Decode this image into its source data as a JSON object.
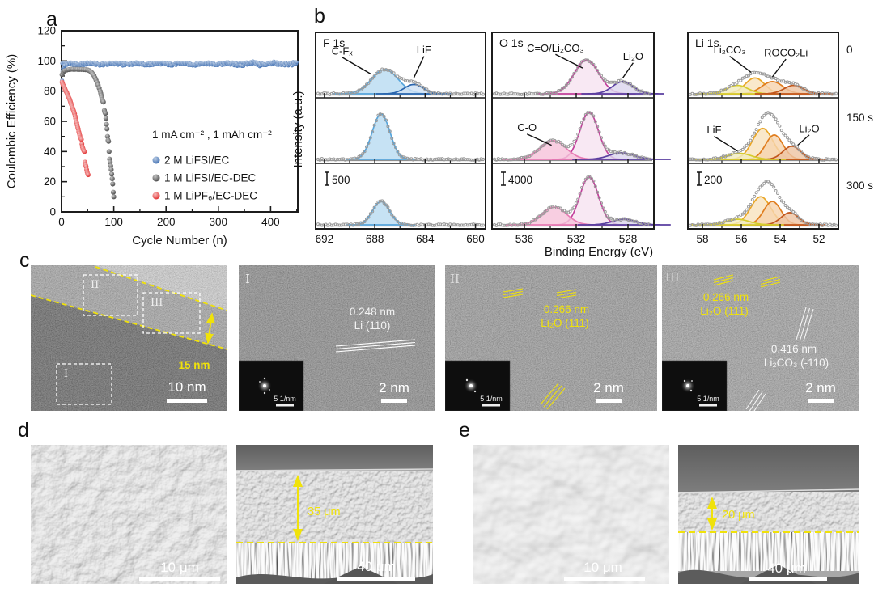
{
  "panel_labels": {
    "a": "a",
    "b": "b",
    "c": "c",
    "d": "d",
    "e": "e"
  },
  "panel_a": {
    "annotation": "1 mA cm⁻² , 1 mAh cm⁻²",
    "legend": [
      {
        "label": "2 M LiFSI/EC",
        "color": "#2e62ab"
      },
      {
        "label": "1 M LiFSI/EC-DEC",
        "color": "#3b3b3b"
      },
      {
        "label": "1 M LiPF₆/EC-DEC",
        "color": "#e01f1f"
      }
    ]
  },
  "chart_data": [
    {
      "type": "scatter",
      "title": "Coulombic efficiency vs cycle number",
      "xlabel": "Cycle Number (n)",
      "ylabel": "Coulombic Efficiency (%)",
      "xlim": [
        0,
        452
      ],
      "ylim": [
        0,
        120
      ],
      "xticks": [
        0,
        100,
        200,
        300,
        400
      ],
      "yticks": [
        0,
        20,
        40,
        60,
        80,
        100,
        120
      ],
      "annotation": "1 mA cm⁻² , 1 mAh cm⁻²",
      "series": [
        {
          "name": "2 M LiFSI/EC",
          "color": "#2e62ab",
          "marker_r": 2.3,
          "summary": "stable ≈98% from cycle 1 to 450",
          "band": {
            "x0": 1,
            "x1": 450,
            "y": 98,
            "noise": 1.8
          },
          "points": [
            [
              1,
              87
            ],
            [
              2,
              93
            ],
            [
              3,
              95
            ],
            [
              4,
              96
            ],
            [
              6,
              97
            ],
            [
              10,
              97.5
            ]
          ]
        },
        {
          "name": "1 M LiFSI/EC-DEC",
          "color": "#3b3b3b",
          "marker_r": 3.1,
          "points": [
            [
              1,
              91
            ],
            [
              3,
              92.5
            ],
            [
              6,
              93.5
            ],
            [
              10,
              94
            ],
            [
              14,
              94.3
            ],
            [
              18,
              94.5
            ],
            [
              22,
              94.5
            ],
            [
              26,
              94.5
            ],
            [
              30,
              94.5
            ],
            [
              34,
              94.4
            ],
            [
              38,
              94.4
            ],
            [
              42,
              94.3
            ],
            [
              46,
              94.2
            ],
            [
              50,
              94
            ],
            [
              53,
              93.6
            ],
            [
              56,
              92.9
            ],
            [
              58,
              92.2
            ],
            [
              60,
              91.3
            ],
            [
              62,
              90.3
            ],
            [
              64,
              88.8
            ],
            [
              66,
              87.3
            ],
            [
              68,
              85.7
            ],
            [
              70,
              84
            ],
            [
              72,
              82
            ],
            [
              74,
              80
            ],
            [
              75,
              78.6
            ],
            [
              76,
              77.2
            ],
            [
              77,
              75.8
            ],
            [
              78,
              74.3
            ],
            [
              79,
              73.2
            ],
            [
              80,
              72.8
            ],
            [
              82,
              67.2
            ],
            [
              83,
              66
            ],
            [
              84,
              65.3
            ],
            [
              85,
              62
            ],
            [
              86,
              58
            ],
            [
              87,
              55
            ],
            [
              88,
              50
            ],
            [
              89,
              47.5
            ],
            [
              90,
              46.8
            ],
            [
              91,
              40
            ],
            [
              92,
              35
            ],
            [
              93,
              33
            ],
            [
              94,
              30.5
            ],
            [
              95,
              28
            ],
            [
              96,
              25
            ],
            [
              97,
              22
            ],
            [
              98,
              18.5
            ],
            [
              99,
              13
            ],
            [
              100,
              10
            ]
          ]
        },
        {
          "name": "1 M LiPF₆/EC-DEC",
          "color": "#e01f1f",
          "marker_r": 3.0,
          "points": [
            [
              1,
              86
            ],
            [
              2,
              85
            ],
            [
              3,
              84
            ],
            [
              4,
              83.4
            ],
            [
              5,
              82.8
            ],
            [
              6,
              82
            ],
            [
              7,
              81
            ],
            [
              8,
              80.2
            ],
            [
              9,
              79.6
            ],
            [
              10,
              79
            ],
            [
              11,
              78
            ],
            [
              12,
              77
            ],
            [
              13,
              76.4
            ],
            [
              14,
              75.6
            ],
            [
              15,
              75
            ],
            [
              16,
              74
            ],
            [
              17,
              73
            ],
            [
              18,
              72
            ],
            [
              19,
              71
            ],
            [
              20,
              70
            ],
            [
              21,
              69
            ],
            [
              22,
              68
            ],
            [
              23,
              67
            ],
            [
              24,
              66
            ],
            [
              25,
              65
            ],
            [
              26,
              63.5
            ],
            [
              27,
              62
            ],
            [
              28,
              60.5
            ],
            [
              29,
              59
            ],
            [
              30,
              57.5
            ],
            [
              31,
              56
            ],
            [
              32,
              55
            ],
            [
              33,
              53.2
            ],
            [
              34,
              52
            ],
            [
              35,
              50.6
            ],
            [
              36,
              49.2
            ],
            [
              37,
              48.6
            ],
            [
              38,
              48
            ],
            [
              39,
              45
            ],
            [
              40,
              43
            ],
            [
              41,
              42
            ],
            [
              42,
              41
            ],
            [
              43,
              40.4
            ],
            [
              44,
              40
            ],
            [
              45,
              33
            ],
            [
              46,
              31
            ],
            [
              47,
              30
            ],
            [
              48,
              28
            ],
            [
              49,
              26.4
            ],
            [
              50,
              25.2
            ],
            [
              51,
              24.6
            ]
          ]
        }
      ]
    },
    {
      "type": "line",
      "subtype": "xps-depth-profile",
      "xlabel": "Binding Energy (eV)",
      "ylabel": "Intensity (a.u.)",
      "row_labels": [
        "0",
        "150 s",
        "300 s"
      ],
      "columns": [
        {
          "title": "F 1s",
          "scale_bar": "500",
          "xticks": [
            692,
            688,
            684,
            680
          ],
          "xrange": [
            692.7,
            679.2
          ],
          "components": {
            "C-Fx": {
              "stroke": "#56a5dc",
              "fill": "#badcf2"
            },
            "LiF": {
              "stroke": "#2b66ae",
              "fill": "#cfe2f4"
            }
          },
          "rows": [
            {
              "time": "0",
              "peaks": [
                {
                  "id": "C-Fx",
                  "center": 687.2,
                  "sigma": 1.05,
                  "amp": 0.52
                },
                {
                  "id": "LiF",
                  "center": 684.9,
                  "sigma": 0.75,
                  "amp": 0.2
                }
              ],
              "labels": [
                {
                  "text": "C-Fₓ",
                  "x": 690.6,
                  "ry": 0.84,
                  "line_to": [
                    688.3,
                    0.42
                  ]
                },
                {
                  "text": "LiF",
                  "x": 684.1,
                  "ry": 0.86,
                  "line_to": [
                    684.9,
                    0.34
                  ]
                }
              ]
            },
            {
              "time": "150 s",
              "peaks": [
                {
                  "id": "C-Fx",
                  "center": 687.5,
                  "sigma": 0.7,
                  "amp": 0.97
                }
              ],
              "labels": []
            },
            {
              "time": "300 s",
              "peaks": [
                {
                  "id": "C-Fx",
                  "center": 687.5,
                  "sigma": 0.68,
                  "amp": 0.5
                }
              ],
              "labels": [],
              "show_scale": true
            }
          ]
        },
        {
          "title": "O 1s",
          "scale_bar": "4000",
          "xticks": [
            536,
            532,
            528
          ],
          "xrange": [
            538.5,
            526.0
          ],
          "components": {
            "CO3": {
              "stroke": "#c23f9b",
              "fill": "#f6e3f0"
            },
            "C-O": {
              "stroke": "#e87cb4",
              "fill": "#f6c3da"
            },
            "Li2O": {
              "stroke": "#5a3fa0",
              "fill": "#dcd6ee"
            }
          },
          "rows": [
            {
              "time": "0",
              "peaks": [
                {
                  "id": "CO3",
                  "center": 531.2,
                  "sigma": 0.95,
                  "amp": 0.72
                },
                {
                  "id": "Li2O",
                  "center": 528.4,
                  "sigma": 0.8,
                  "amp": 0.26
                }
              ],
              "labels": [
                {
                  "text": "C=O/Li₂CO₃",
                  "x": 533.6,
                  "ry": 0.9,
                  "line_to": [
                    531.5,
                    0.55
                  ]
                },
                {
                  "text": "Li₂O",
                  "x": 527.6,
                  "ry": 0.72,
                  "line_to": [
                    528.4,
                    0.34
                  ]
                }
              ]
            },
            {
              "time": "150 s",
              "peaks": [
                {
                  "id": "C-O",
                  "center": 533.8,
                  "sigma": 1.0,
                  "amp": 0.4
                },
                {
                  "id": "CO3",
                  "center": 531.0,
                  "sigma": 0.72,
                  "amp": 1.0
                },
                {
                  "id": "Li2O",
                  "center": 528.5,
                  "sigma": 0.95,
                  "amp": 0.14
                }
              ],
              "labels": [
                {
                  "text": "C-O",
                  "x": 535.8,
                  "ry": 0.6,
                  "line_to": [
                    533.9,
                    0.3
                  ]
                }
              ]
            },
            {
              "time": "300 s",
              "peaks": [
                {
                  "id": "C-O",
                  "center": 533.7,
                  "sigma": 0.95,
                  "amp": 0.38
                },
                {
                  "id": "CO3",
                  "center": 531.0,
                  "sigma": 0.72,
                  "amp": 1.02
                },
                {
                  "id": "Li2O",
                  "center": 528.3,
                  "sigma": 0.9,
                  "amp": 0.12
                }
              ],
              "labels": [],
              "show_scale": true
            }
          ]
        },
        {
          "title": "Li 1s",
          "scale_bar": "200",
          "xticks": [
            58,
            56,
            54,
            52
          ],
          "xrange": [
            58.75,
            51.0
          ],
          "components": {
            "LiF": {
              "stroke": "#d6cc2e",
              "fill": "#f2edc0"
            },
            "Li2CO3": {
              "stroke": "#e9a626",
              "fill": "#f8e3c0"
            },
            "ROCO2Li": {
              "stroke": "#e07d1e",
              "fill": "#f6d4ae"
            },
            "Li2O": {
              "stroke": "#c2571d",
              "fill": "#eec4a4"
            }
          },
          "rows": [
            {
              "time": "0",
              "peaks": [
                {
                  "id": "LiF",
                  "center": 56.2,
                  "sigma": 0.55,
                  "amp": 0.18
                },
                {
                  "id": "Li2CO3",
                  "center": 55.3,
                  "sigma": 0.5,
                  "amp": 0.34
                },
                {
                  "id": "ROCO2Li",
                  "center": 54.4,
                  "sigma": 0.55,
                  "amp": 0.26
                },
                {
                  "id": "Li2O",
                  "center": 53.3,
                  "sigma": 0.5,
                  "amp": 0.18
                }
              ],
              "labels": [
                {
                  "text": "Li₂CO₃",
                  "x": 56.6,
                  "ry": 0.86,
                  "line_to": [
                    55.5,
                    0.46
                  ]
                },
                {
                  "text": "ROCO₂Li",
                  "x": 53.7,
                  "ry": 0.8,
                  "line_to": [
                    54.4,
                    0.36
                  ]
                }
              ]
            },
            {
              "time": "150 s",
              "peaks": [
                {
                  "id": "LiF",
                  "center": 56.1,
                  "sigma": 0.6,
                  "amp": 0.13
                },
                {
                  "id": "Li2CO3",
                  "center": 54.9,
                  "sigma": 0.52,
                  "amp": 0.66
                },
                {
                  "id": "ROCO2Li",
                  "center": 54.3,
                  "sigma": 0.45,
                  "amp": 0.52
                },
                {
                  "id": "Li2O",
                  "center": 53.4,
                  "sigma": 0.45,
                  "amp": 0.28
                }
              ],
              "labels": [
                {
                  "text": "LiF",
                  "x": 57.4,
                  "ry": 0.55,
                  "line_to": [
                    56.2,
                    0.18
                  ]
                },
                {
                  "text": "Li₂O",
                  "x": 52.5,
                  "ry": 0.58,
                  "line_to": [
                    53.1,
                    0.3
                  ]
                }
              ]
            },
            {
              "time": "300 s",
              "peaks": [
                {
                  "id": "LiF",
                  "center": 56.2,
                  "sigma": 0.6,
                  "amp": 0.12
                },
                {
                  "id": "Li2CO3",
                  "center": 55.0,
                  "sigma": 0.52,
                  "amp": 0.6
                },
                {
                  "id": "ROCO2Li",
                  "center": 54.4,
                  "sigma": 0.45,
                  "amp": 0.5
                },
                {
                  "id": "Li2O",
                  "center": 53.5,
                  "sigma": 0.45,
                  "amp": 0.26
                }
              ],
              "labels": [],
              "show_scale": true
            }
          ]
        }
      ]
    }
  ],
  "panel_c": {
    "overview": {
      "regions": [
        "I",
        "II",
        "III"
      ],
      "thickness": "15 nm",
      "scale_bar": "10 nm"
    },
    "region_i": {
      "tag": "I",
      "dspacing": "0.248 nm",
      "plane": "Li (110)",
      "fft_scale": "5 1/nm",
      "scale_bar": "2 nm"
    },
    "region_ii": {
      "tag": "II",
      "dspacing": "0.266 nm",
      "plane": "Li₂O (111)",
      "fft_scale": "5 1/nm",
      "scale_bar": "2 nm"
    },
    "region_iii": {
      "tag": "III",
      "dspacing_li2o": "0.266 nm",
      "plane_li2o": "Li₂O (111)",
      "dspacing_li2co3": "0.416 nm",
      "plane_li2co3": "Li₂CO₃ (-110)",
      "fft_scale": "5 1/nm",
      "scale_bar": "2 nm"
    }
  },
  "panel_d": {
    "surface_scale_bar": "10 μm",
    "thickness": "35 μm",
    "cross_section_scale_bar": "40 μm"
  },
  "panel_e": {
    "surface_scale_bar": "10 μm",
    "thickness": "20 μm",
    "cross_section_scale_bar": "40 μm"
  }
}
